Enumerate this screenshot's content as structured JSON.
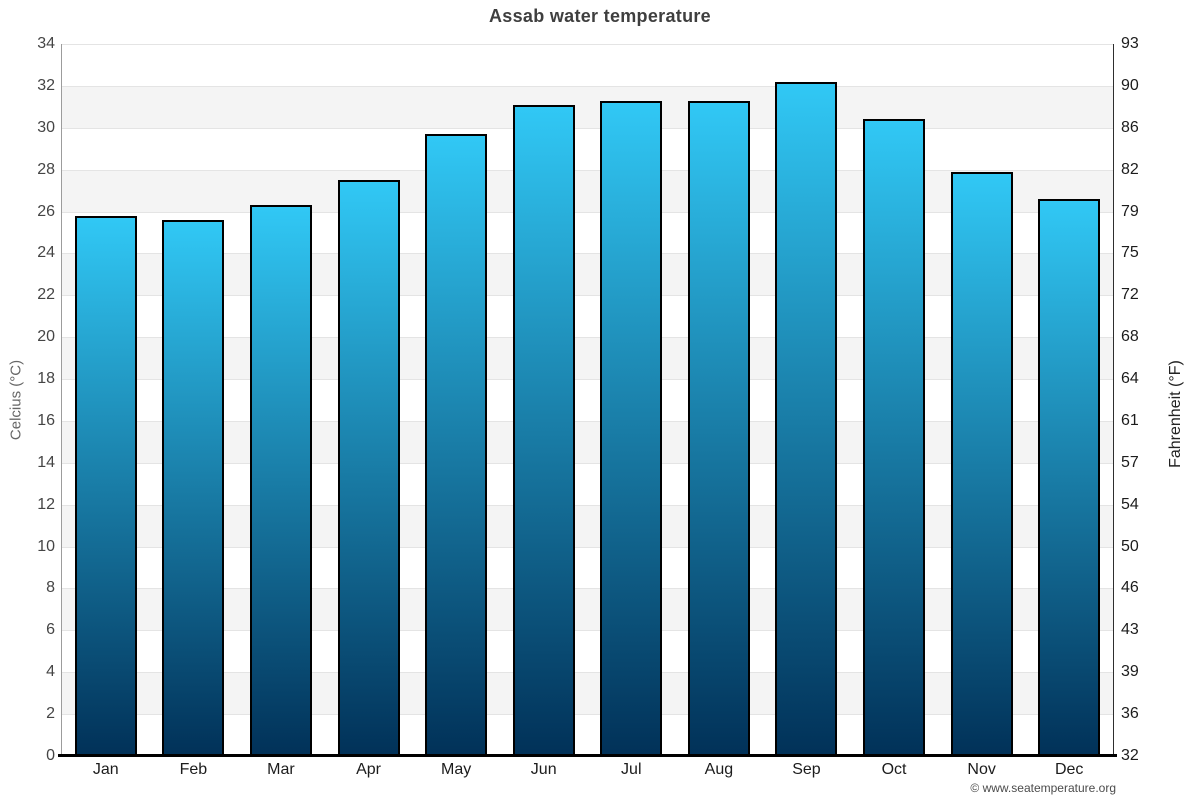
{
  "title": "Assab water temperature",
  "watermark": "© www.seatemperature.org",
  "chart_data": {
    "type": "bar",
    "title": "Assab water temperature",
    "categories": [
      "Jan",
      "Feb",
      "Mar",
      "Apr",
      "May",
      "Jun",
      "Jul",
      "Aug",
      "Sep",
      "Oct",
      "Nov",
      "Dec"
    ],
    "values": [
      25.8,
      25.6,
      26.3,
      27.5,
      29.7,
      31.1,
      31.3,
      31.3,
      32.2,
      30.4,
      27.9,
      26.6
    ],
    "unit": "°C",
    "ylabel_left": "Celcius (°C)",
    "ylabel_right": "Fahrenheit (°F)",
    "ylim_celsius": [
      0,
      34
    ],
    "celsius_ticks": [
      34,
      32,
      30,
      28,
      26,
      24,
      22,
      20,
      18,
      16,
      14,
      12,
      10,
      8,
      6,
      4,
      2,
      0
    ],
    "fahrenheit_ticks": [
      93,
      90,
      86,
      82,
      79,
      75,
      72,
      68,
      64,
      61,
      57,
      54,
      50,
      46,
      43,
      39,
      36,
      32
    ],
    "grid": "alternating-horizontal-bands",
    "legend": "none",
    "colors": {
      "bar_gradient_top": "#31c8f5",
      "bar_gradient_bottom": "#013158",
      "bar_border": "#000000",
      "band_light": "#ffffff",
      "band_dark": "#f4f4f4",
      "gridline": "#e4e4e4",
      "axis_left": "#9c9c9c",
      "axis_right": "#2e2e2e",
      "axis_bottom": "#000000",
      "title_color": "#3f3f3f",
      "celsius_tick_color": "#454545",
      "fahrenheit_tick_color": "#1c1c1c",
      "month_label_color": "#1c1c1c",
      "celsius_title_color": "#666666",
      "fahrenheit_title_color": "#222222",
      "watermark_color": "#4b4b4b"
    }
  }
}
